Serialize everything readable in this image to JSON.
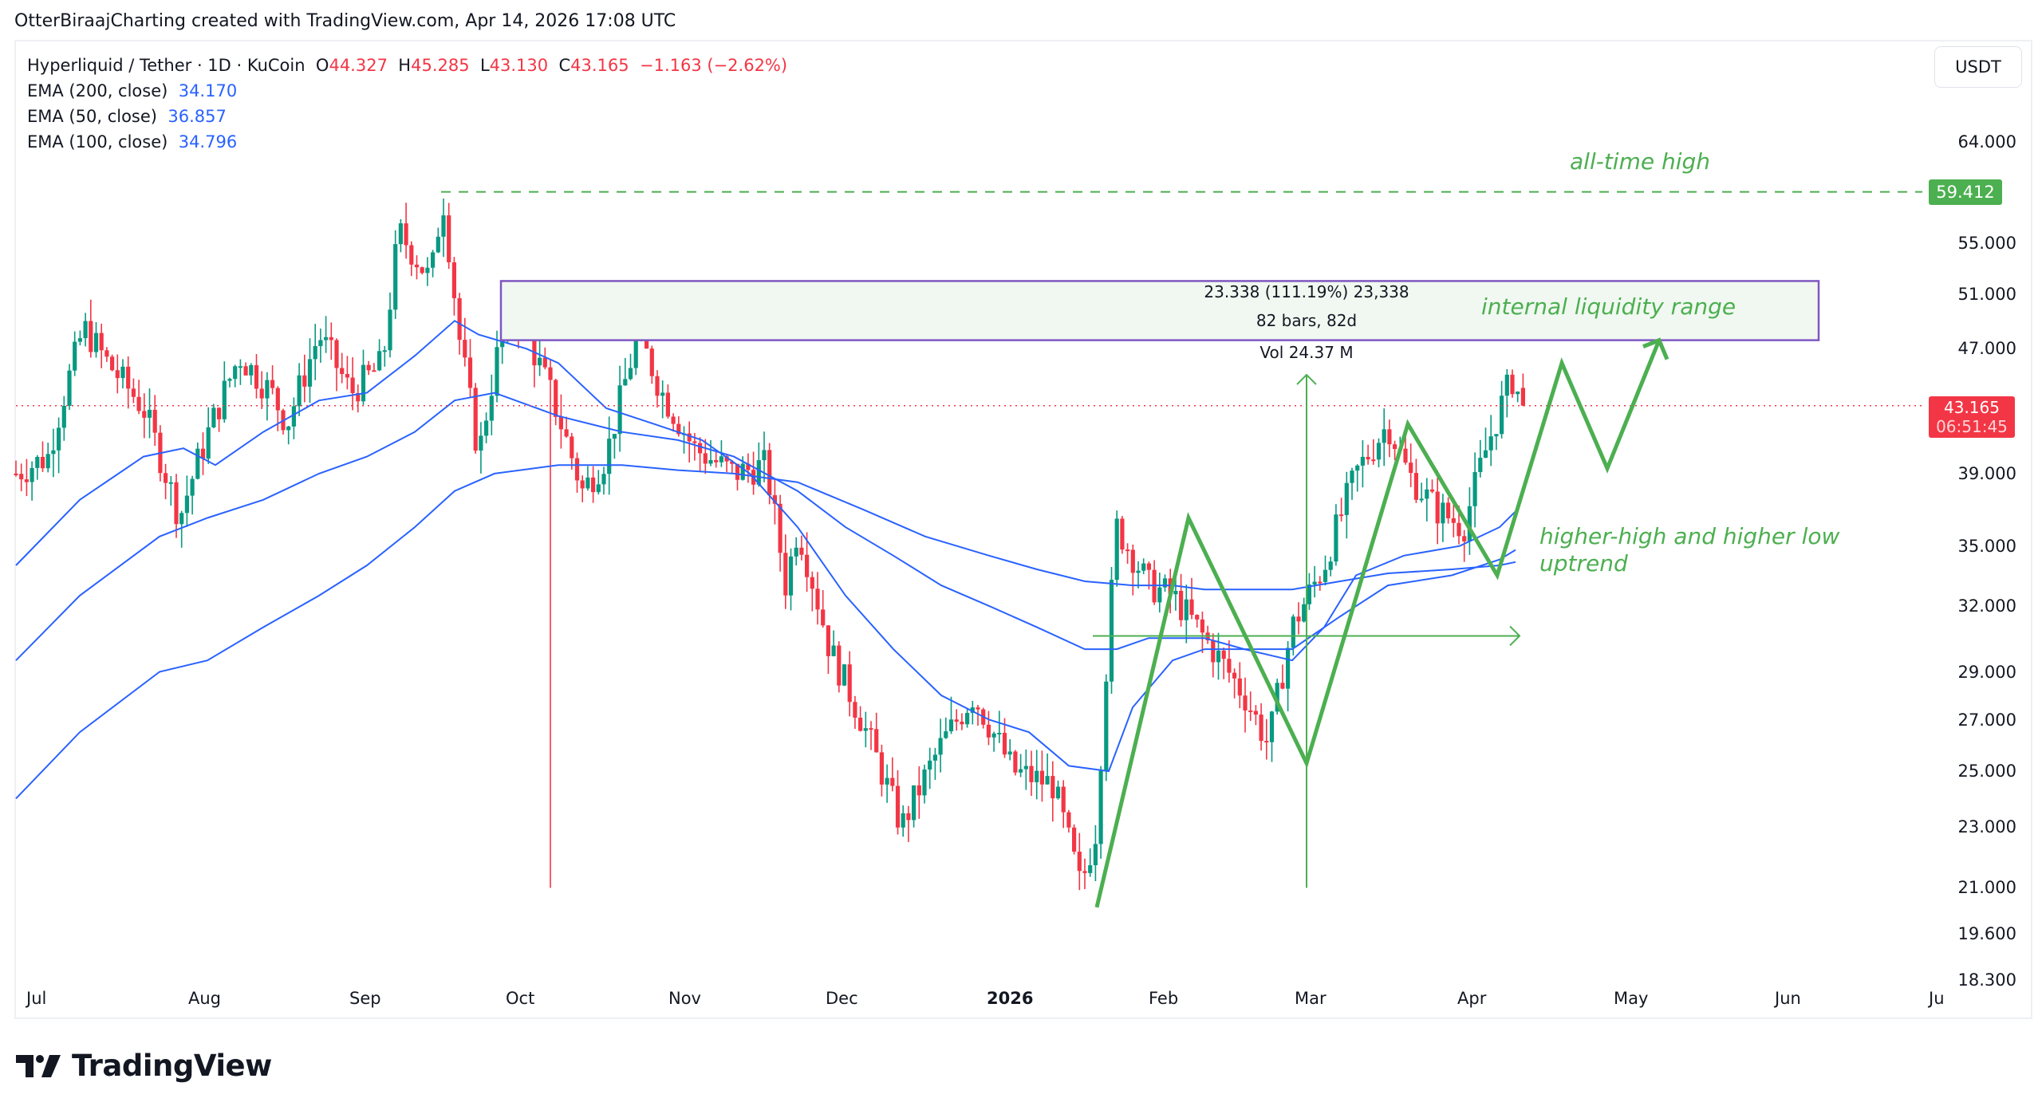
{
  "caption": "OtterBiraajCharting created with TradingView.com, Apr 14, 2026 17:08 UTC",
  "symbol": {
    "title": "Hyperliquid / Tether · 1D · KuCoin",
    "open_label": "O",
    "open": "44.327",
    "high_label": "H",
    "high": "45.285",
    "low_label": "L",
    "low": "43.130",
    "close_label": "C",
    "close": "43.165",
    "change": "−1.163 (−2.62%)"
  },
  "indicators": [
    {
      "label": "EMA (200, close)",
      "value": "34.170"
    },
    {
      "label": "EMA (50, close)",
      "value": "36.857"
    },
    {
      "label": "EMA (100, close)",
      "value": "34.796"
    }
  ],
  "currency_button": "USDT",
  "price_axis": {
    "ticks": [
      "64.000",
      "55.000",
      "51.000",
      "47.000",
      "39.000",
      "35.000",
      "32.000",
      "29.000",
      "27.000",
      "25.000",
      "23.000",
      "21.000",
      "19.600",
      "18.300"
    ],
    "ath_tag": "59.412",
    "last_price": "43.165",
    "countdown": "06:51:45"
  },
  "time_axis": {
    "ticks": [
      "Jul",
      "Aug",
      "Sep",
      "Oct",
      "Nov",
      "Dec",
      "2026",
      "Feb",
      "Mar",
      "Apr",
      "May",
      "Jun",
      "Ju"
    ]
  },
  "annotations": {
    "ath": "all-time high",
    "range": "internal liquidity range",
    "trend_line1": "higher-high and higher low",
    "trend_line2": "uptrend",
    "measure_price": "23.338 (111.19%) 23,338",
    "measure_bars": "82 bars, 82d",
    "measure_vol": "Vol 24.37 M"
  },
  "colors": {
    "up": "#089981",
    "down": "#f23645",
    "ema": "#2962ff",
    "annotation": "#4caf50",
    "range_border": "#7e57c2",
    "range_fill": "#f1f8f1"
  },
  "footer": {
    "brand": "TradingView"
  },
  "chart_data": {
    "type": "candlestick",
    "title": "Hyperliquid / Tether · 1D · KuCoin",
    "scale": "log",
    "ylim": [
      18.3,
      66
    ],
    "xlabel": "",
    "ylabel": "USDT",
    "x_ticks": [
      "Jul",
      "Aug",
      "Sep",
      "Oct",
      "Nov",
      "Dec",
      "2026",
      "Feb",
      "Mar",
      "Apr",
      "May",
      "Jun",
      "Jul"
    ],
    "y_ticks": [
      18.3,
      19.6,
      21,
      23,
      25,
      27,
      29,
      32,
      35,
      39,
      43.165,
      47,
      51,
      55,
      59.412,
      64
    ],
    "last_bar": {
      "open": 44.327,
      "high": 45.285,
      "low": 43.13,
      "close": 43.165,
      "change": -1.163,
      "change_pct": -2.62
    },
    "ema": [
      {
        "name": "EMA 200",
        "value": 34.17
      },
      {
        "name": "EMA 50",
        "value": 36.857
      },
      {
        "name": "EMA 100",
        "value": 34.796
      }
    ],
    "approx_monthly_closes": {
      "x": [
        "Jul 2025",
        "Aug 2025",
        "Sep 2025",
        "Oct 2025",
        "Nov 2025",
        "Dec 2025",
        "Jan 2026",
        "Feb 2026",
        "Mar 2026",
        "Apr 2026"
      ],
      "close": [
        44.5,
        43.0,
        46.0,
        38.0,
        37.0,
        28.5,
        25.0,
        29.5,
        36.0,
        43.165
      ]
    },
    "key_levels": {
      "all_time_high": 59.412,
      "range_top": 52.0,
      "range_bottom": 47.6,
      "cycle_low": 20.4
    },
    "measure": {
      "delta": 23.338,
      "pct": 111.19,
      "bars": 82,
      "days": 82,
      "volume": "24.37M"
    },
    "legend_position": "top-left",
    "grid": false
  }
}
